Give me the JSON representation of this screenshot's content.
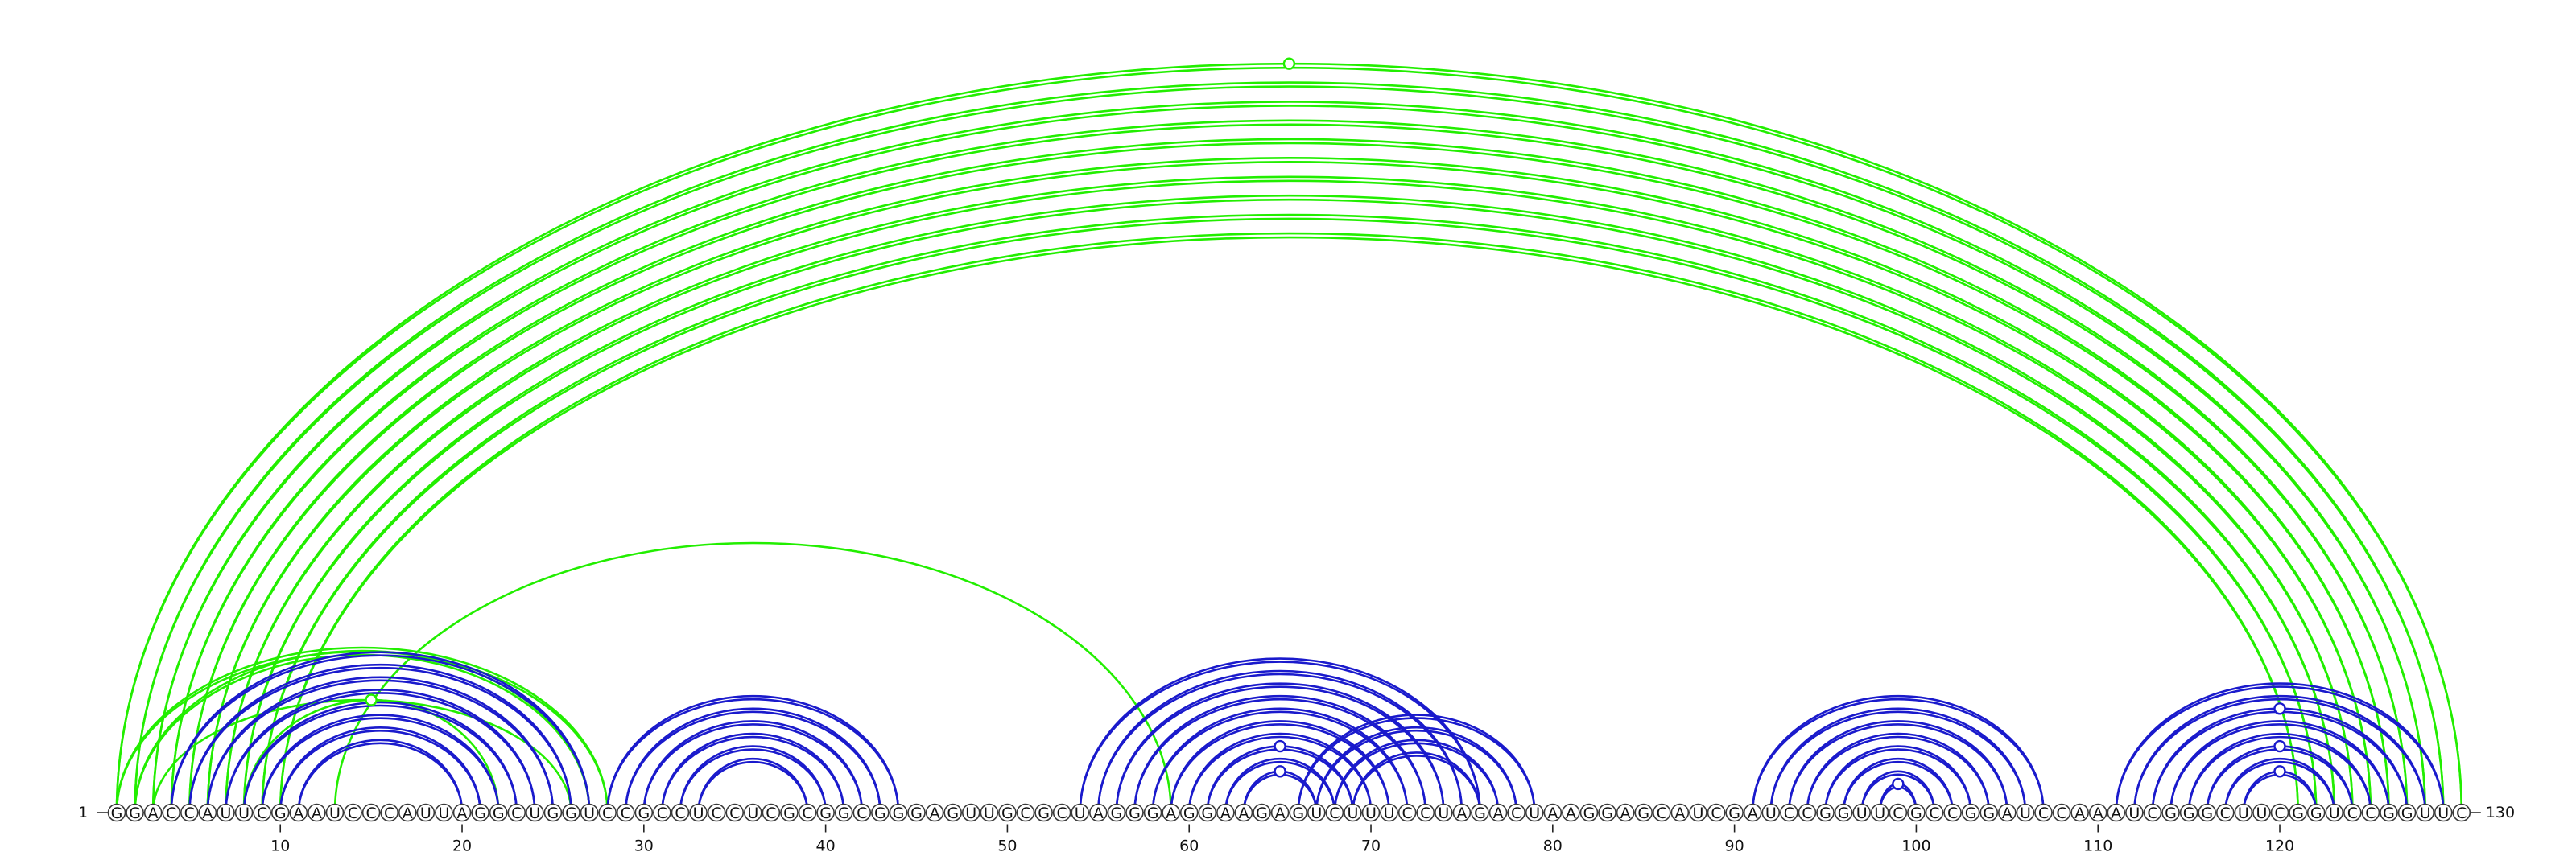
{
  "chart_data": {
    "type": "arc-diagram",
    "sequence": "GGACCAUUCGAAUCCCAUUAGGCUGGUCCGCCUCCUCGCGGCGGGAGUUGCGCUAGGGAGGAAGAGUCUUUCCUAGACUAAGGAGCAUCGAUCCGGUUCGCCGGAUCCAAAUCGGGCUUCGGUCCGGUUC",
    "start_label": "1",
    "end_label": "130",
    "ticks": [
      10,
      20,
      30,
      40,
      50,
      60,
      70,
      80,
      90,
      100,
      110,
      120
    ],
    "colors": {
      "upper": "#22ee00",
      "lower": "#1a1acc"
    },
    "upper_pairs": [
      [
        1,
        130
      ],
      [
        2,
        129
      ],
      [
        3,
        128
      ],
      [
        4,
        127
      ],
      [
        5,
        126
      ],
      [
        6,
        125
      ],
      [
        7,
        124
      ],
      [
        8,
        123
      ],
      [
        9,
        122
      ],
      [
        10,
        121
      ]
    ],
    "lower_pairs_green": [
      [
        1,
        28
      ],
      [
        2,
        27
      ],
      [
        3,
        26
      ],
      [
        8,
        22
      ],
      [
        13,
        59
      ]
    ],
    "lower_pairs_blue": [
      [
        4,
        27
      ],
      [
        5,
        26
      ],
      [
        6,
        25
      ],
      [
        7,
        24
      ],
      [
        8,
        23
      ],
      [
        9,
        22
      ],
      [
        10,
        21
      ],
      [
        11,
        20
      ],
      [
        28,
        44
      ],
      [
        29,
        43
      ],
      [
        30,
        42
      ],
      [
        31,
        41
      ],
      [
        32,
        40
      ],
      [
        33,
        39
      ],
      [
        54,
        76
      ],
      [
        55,
        75
      ],
      [
        56,
        74
      ],
      [
        57,
        73
      ],
      [
        58,
        72
      ],
      [
        59,
        71
      ],
      [
        60,
        70
      ],
      [
        61,
        69
      ],
      [
        62,
        68
      ],
      [
        63,
        67
      ],
      [
        66,
        79
      ],
      [
        67,
        78
      ],
      [
        68,
        77
      ],
      [
        69,
        76
      ],
      [
        91,
        107
      ],
      [
        92,
        106
      ],
      [
        93,
        105
      ],
      [
        94,
        104
      ],
      [
        95,
        103
      ],
      [
        96,
        102
      ],
      [
        97,
        101
      ],
      [
        98,
        100
      ],
      [
        111,
        129
      ],
      [
        112,
        128
      ],
      [
        113,
        127
      ],
      [
        114,
        126
      ],
      [
        115,
        125
      ],
      [
        116,
        124
      ],
      [
        117,
        123
      ],
      [
        118,
        122
      ]
    ],
    "markers": [
      {
        "position": 65.5,
        "pair": [
          1,
          130
        ],
        "color": "upper"
      },
      {
        "position": 15,
        "pair": [
          8,
          22
        ],
        "color": "upper"
      },
      {
        "position": 65,
        "pair": [
          61,
          69
        ],
        "color": "lower"
      },
      {
        "position": 65,
        "pair": [
          63,
          67
        ],
        "color": "lower"
      },
      {
        "position": 99,
        "pair": [
          98,
          100
        ],
        "color": "lower"
      },
      {
        "position": 120,
        "pair": [
          113,
          127
        ],
        "color": "lower"
      },
      {
        "position": 120,
        "pair": [
          116,
          124
        ],
        "color": "lower"
      },
      {
        "position": 120,
        "pair": [
          118,
          122
        ],
        "color": "lower"
      }
    ]
  }
}
